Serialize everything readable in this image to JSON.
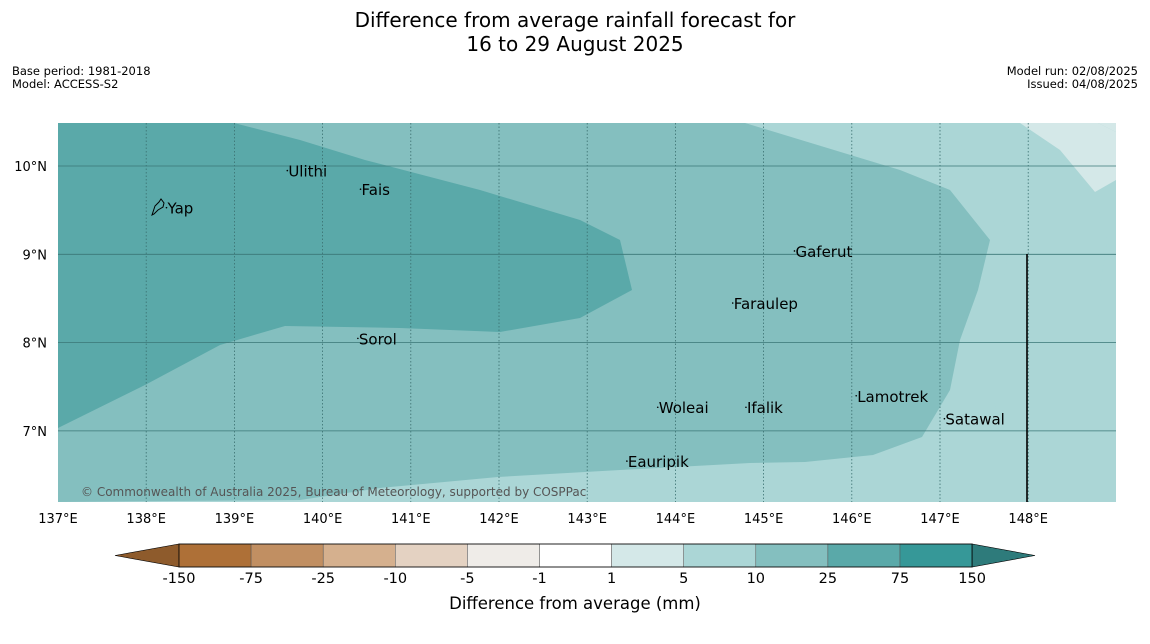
{
  "title_line1": "Difference from average rainfall forecast for",
  "title_line2": "16 to 29 August 2025",
  "meta": {
    "base_period": "Base period: 1981-2018",
    "model": "Model: ACCESS-S2",
    "model_run": "Model run: 02/08/2025",
    "issued": "Issued: 04/08/2025"
  },
  "copyright": "© Commonwealth of Australia 2025, Bureau of Meteorology, supported by COSPPac",
  "x_ticks": [
    "137°E",
    "138°E",
    "139°E",
    "140°E",
    "141°E",
    "142°E",
    "143°E",
    "144°E",
    "145°E",
    "146°E",
    "147°E",
    "148°E"
  ],
  "y_ticks": [
    "10°N",
    "9°N",
    "8°N",
    "7°N"
  ],
  "places": [
    {
      "name": "Ulithi",
      "lon": 139.6,
      "lat": 9.88
    },
    {
      "name": "Fais",
      "lon": 140.43,
      "lat": 9.67
    },
    {
      "name": "Yap",
      "lon": 138.23,
      "lat": 9.46
    },
    {
      "name": "Gaferut",
      "lon": 145.35,
      "lat": 8.97
    },
    {
      "name": "Faraulep",
      "lon": 144.65,
      "lat": 8.38
    },
    {
      "name": "Sorol",
      "lon": 140.4,
      "lat": 7.98
    },
    {
      "name": "Lamotrek",
      "lon": 146.05,
      "lat": 7.33
    },
    {
      "name": "Woleai",
      "lon": 143.8,
      "lat": 7.2
    },
    {
      "name": "Ifalik",
      "lon": 144.8,
      "lat": 7.2
    },
    {
      "name": "Satawal",
      "lon": 147.05,
      "lat": 7.07
    },
    {
      "name": "Eauripik",
      "lon": 143.45,
      "lat": 6.59
    }
  ],
  "colorbar": {
    "title": "Difference from average (mm)",
    "labels": [
      "-150",
      "-75",
      "-25",
      "-10",
      "-5",
      "-1",
      "1",
      "5",
      "10",
      "25",
      "75",
      "150"
    ],
    "colors": [
      "#ae7037",
      "#c18f62",
      "#d5b08e",
      "#e4d2c2",
      "#efece8",
      "#ffffff",
      "#d4e8e8",
      "#abd6d6",
      "#84bfbf",
      "#5aa9a9",
      "#369898"
    ],
    "extend_low": "#8e5b2c",
    "extend_high": "#2e7b7b"
  },
  "legend_colors": {
    "sea_level_10_25": "#84bfbf",
    "sea_level_25_75": "#5aa9a9",
    "sea_level_5_10": "#abd6d6",
    "sea_level_1_5": "#d4e8e8"
  }
}
